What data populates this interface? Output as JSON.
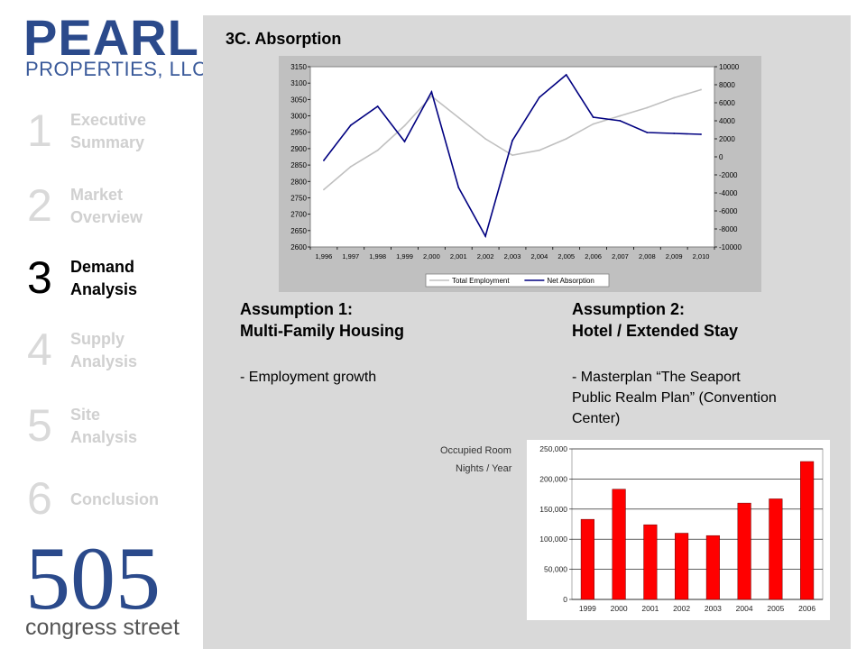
{
  "brand": {
    "name": "PEARL",
    "subtitle": "PROPERTIES, LLC",
    "address_number": "505",
    "address_street": "congress street"
  },
  "nav": {
    "items": [
      {
        "number": "1",
        "line1": "Executive",
        "line2": "Summary",
        "active": false
      },
      {
        "number": "2",
        "line1": "Market",
        "line2": "Overview",
        "active": false
      },
      {
        "number": "3",
        "line1": "Demand",
        "line2": "Analysis",
        "active": true
      },
      {
        "number": "4",
        "line1": "Supply",
        "line2": "Analysis",
        "active": false
      },
      {
        "number": "5",
        "line1": "Site",
        "line2": "Analysis",
        "active": false
      },
      {
        "number": "6",
        "line1": "Conclusion",
        "line2": "",
        "active": false
      }
    ]
  },
  "main": {
    "section_title": "3C. Absorption",
    "assumption1": {
      "title_line1": "Assumption 1:",
      "title_line2": "Multi-Family Housing",
      "text": "- Employment growth"
    },
    "assumption2": {
      "title_line1": "Assumption 2:",
      "title_line2": "Hotel / Extended Stay",
      "text_line1": "- Masterplan “The Seaport",
      "text_line2": "Public Realm Plan” (Convention",
      "text_line3": "Center)"
    },
    "occupied_label_line1": "Occupied Room",
    "occupied_label_line2": "Nights / Year"
  },
  "colors": {
    "employment_line": "#c0c0c0",
    "absorption_line": "#000080",
    "bar_fill": "#ff0000"
  },
  "chart_data": [
    {
      "type": "line",
      "x": [
        1996,
        1997,
        1998,
        1999,
        2000,
        2001,
        2002,
        2003,
        2004,
        2005,
        2006,
        2007,
        2008,
        2009,
        2010
      ],
      "x_tick_labels": [
        "1,996",
        "1,997",
        "1,998",
        "1,999",
        "2,000",
        "2,001",
        "2,002",
        "2,003",
        "2,004",
        "2,005",
        "2,006",
        "2,007",
        "2,008",
        "2,009",
        "2,010"
      ],
      "series": [
        {
          "name": "Total Employment",
          "axis": "left",
          "color": "#c0c0c0",
          "values": [
            2775,
            2845,
            2895,
            2970,
            3060,
            2995,
            2930,
            2880,
            2895,
            2930,
            2975,
            3000,
            3025,
            3055,
            3080
          ]
        },
        {
          "name": "Net Absorption",
          "axis": "right",
          "color": "#000080",
          "values": [
            -400,
            3500,
            5600,
            1700,
            7200,
            -3400,
            -8800,
            1800,
            6600,
            9100,
            4400,
            4000,
            2700,
            2600,
            2500
          ]
        }
      ],
      "y_left": {
        "ylim": [
          2600,
          3150
        ],
        "ticks": [
          2600,
          2650,
          2700,
          2750,
          2800,
          2850,
          2900,
          2950,
          3000,
          3050,
          3100,
          3150
        ]
      },
      "y_right": {
        "ylim": [
          -10000,
          10000
        ],
        "ticks": [
          -10000,
          -8000,
          -6000,
          -4000,
          -2000,
          0,
          2000,
          4000,
          6000,
          8000,
          10000
        ]
      },
      "legend": "bottom"
    },
    {
      "type": "bar",
      "categories": [
        "1999",
        "2000",
        "2001",
        "2002",
        "2003",
        "2004",
        "2005",
        "2006"
      ],
      "values": [
        133000,
        183000,
        124000,
        110000,
        106000,
        160000,
        167000,
        229000
      ],
      "ylim": [
        0,
        250000
      ],
      "y_ticks": [
        0,
        50000,
        100000,
        150000,
        200000,
        250000
      ],
      "y_tick_labels": [
        "0",
        "50,000",
        "100,000",
        "150,000",
        "200,000",
        "250,000"
      ],
      "color": "#ff0000"
    }
  ]
}
